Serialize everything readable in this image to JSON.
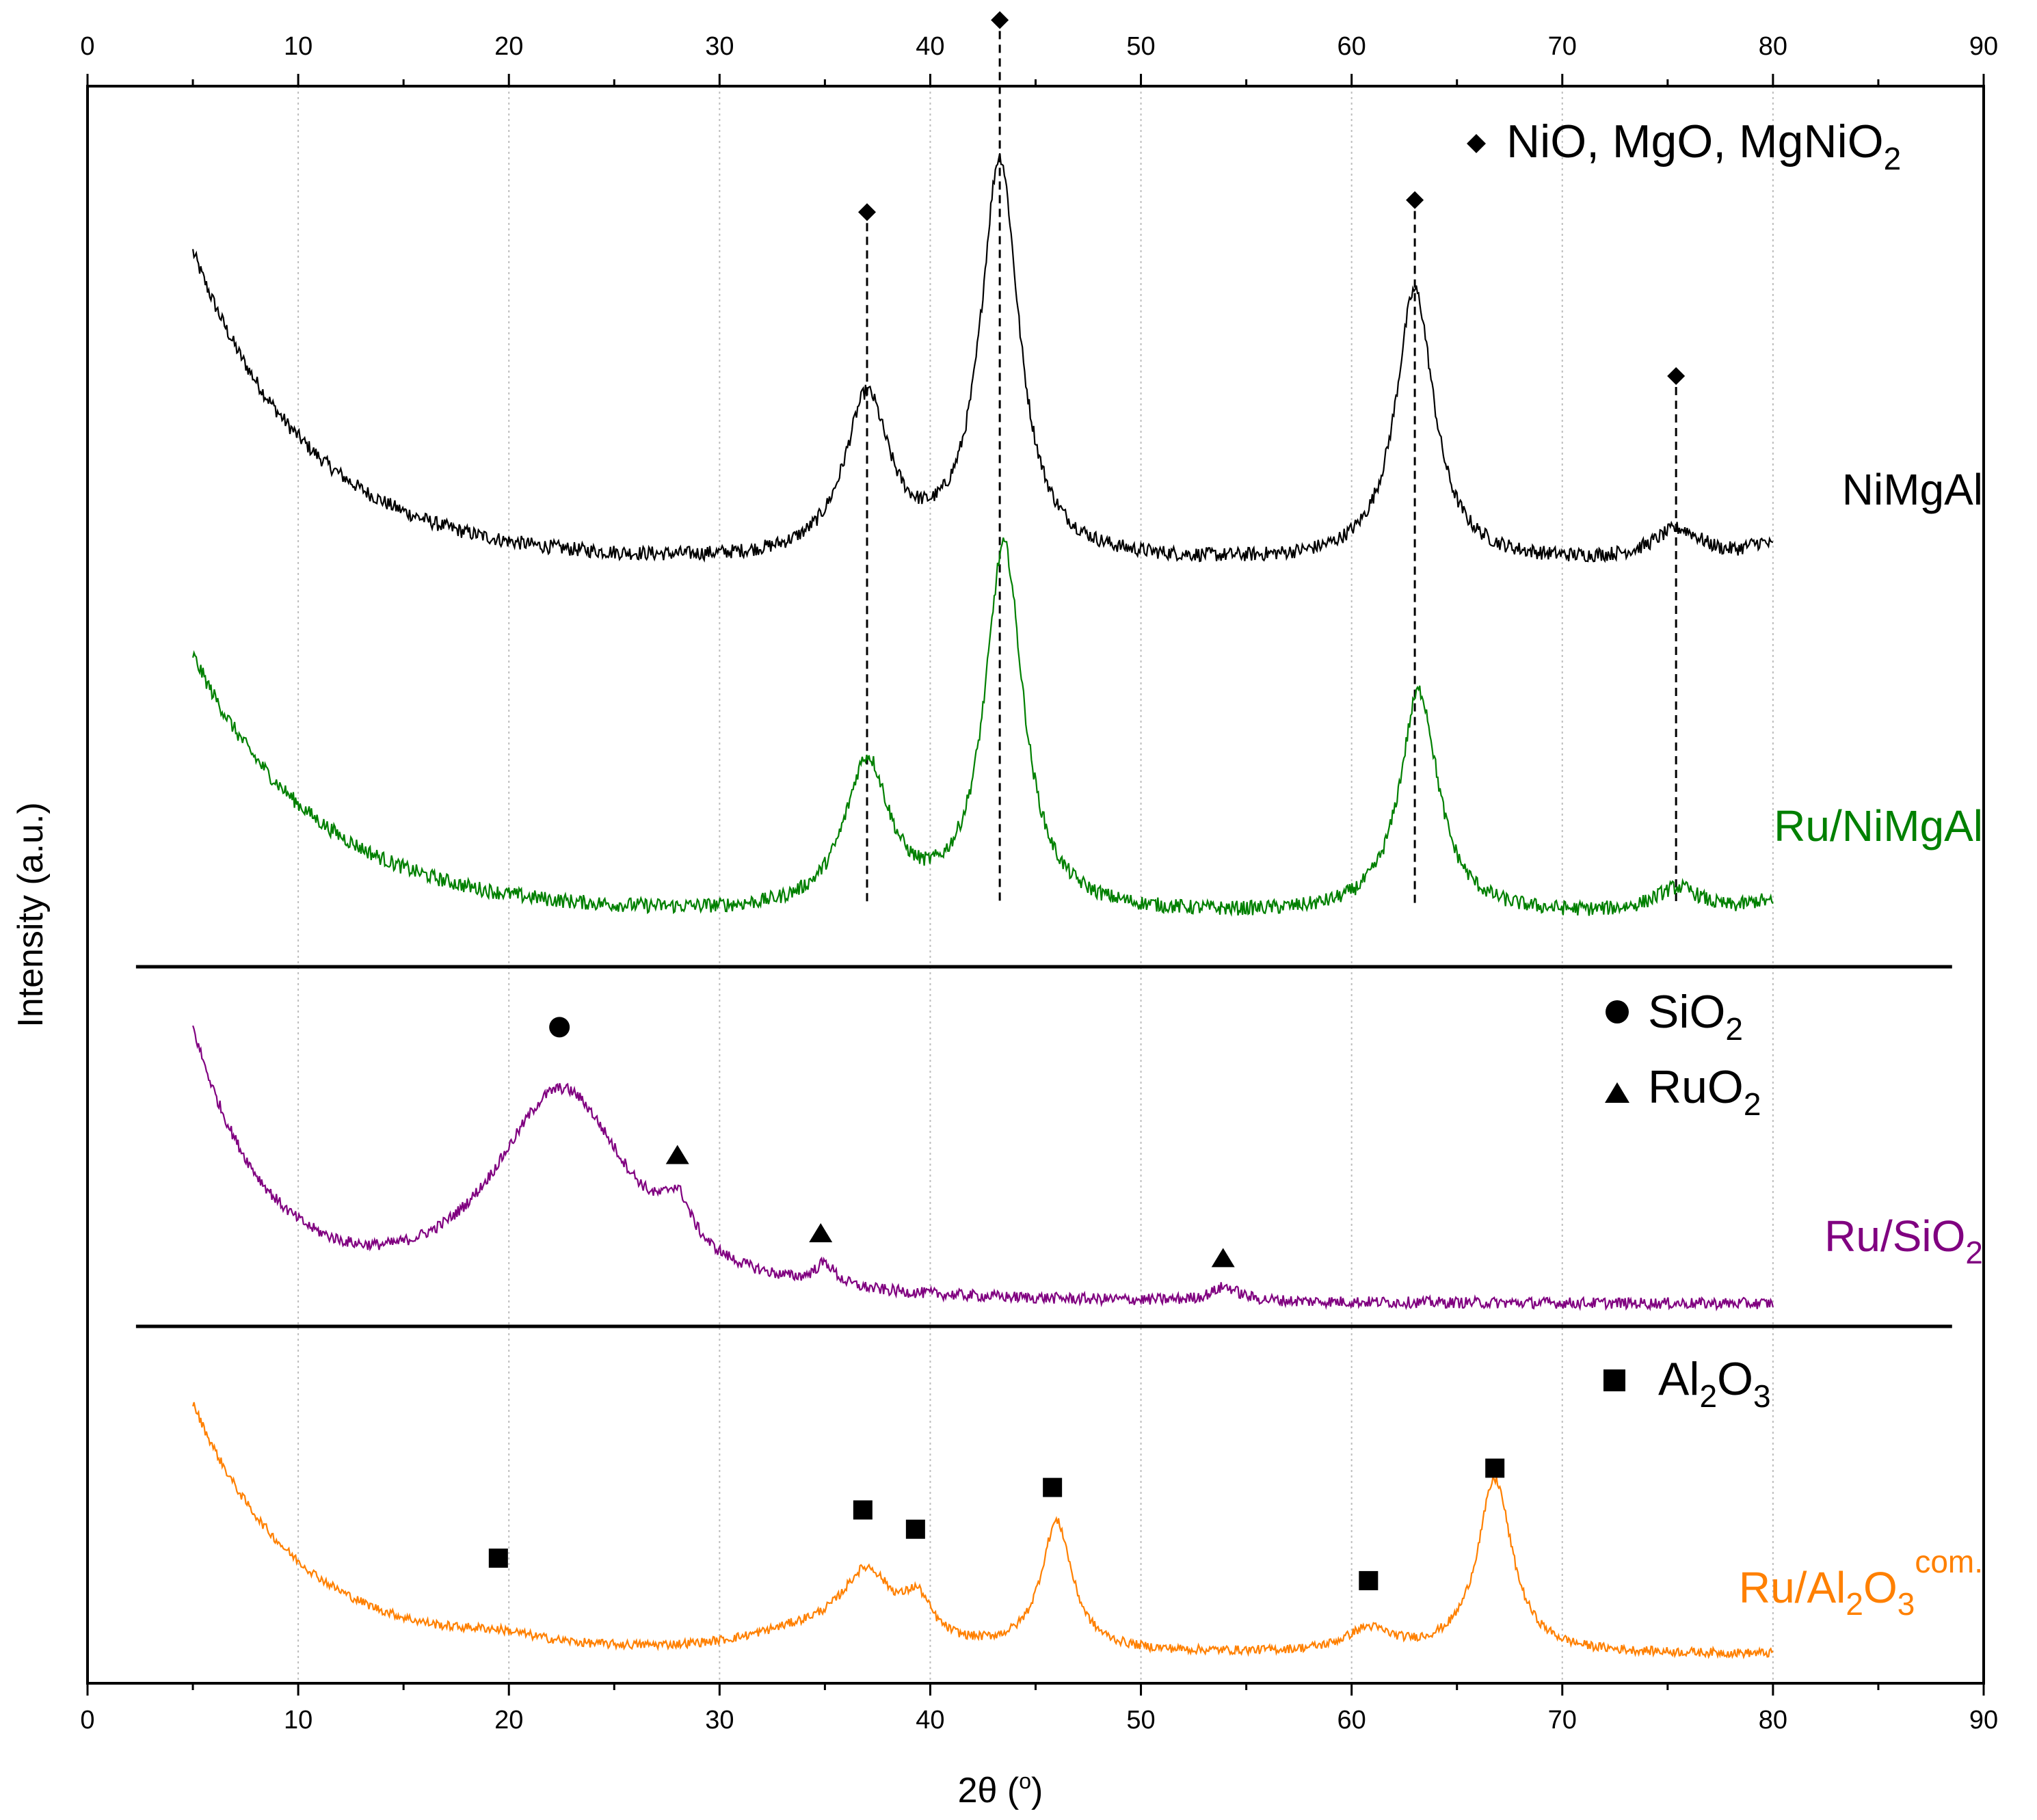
{
  "chart_data": {
    "type": "line",
    "title": "",
    "xlabel_base": "2θ (",
    "xlabel_sup": "o",
    "xlabel_end": ")",
    "ylabel": "Intensity (a.u.)",
    "xlim": [
      0,
      90
    ],
    "xticks": [
      0,
      10,
      20,
      30,
      40,
      50,
      60,
      70,
      80,
      90
    ],
    "top_xticks": [
      0,
      10,
      20,
      30,
      40,
      50,
      60,
      70,
      80,
      90
    ],
    "grid": "vertical dotted at major ticks",
    "x_range_measured": [
      5,
      80
    ],
    "series": [
      {
        "name": "NiMgAl",
        "label_base": "NiMgAl",
        "color": "#000000",
        "peaks": [
          {
            "x": 37.0,
            "h": 0.4,
            "w": 1.3
          },
          {
            "x": 43.3,
            "h": 1.0,
            "w": 1.1
          },
          {
            "x": 63.0,
            "h": 0.68,
            "w": 1.1
          },
          {
            "x": 75.5,
            "h": 0.08,
            "w": 1.5
          },
          {
            "x": 79.5,
            "h": 0.04,
            "w": 1.0
          }
        ],
        "bg": {
          "a": 0.78,
          "k": 0.18,
          "c": 0.0
        },
        "noise": 0.018,
        "markers": [
          {
            "x": 37.0,
            "shape": "diamond",
            "y": 0.88
          },
          {
            "x": 43.3,
            "shape": "diamond",
            "y": 1.36
          },
          {
            "x": 63.0,
            "shape": "diamond",
            "y": 0.91
          },
          {
            "x": 75.4,
            "shape": "diamond",
            "y": 0.47
          }
        ]
      },
      {
        "name": "Ru/NiMgAl",
        "label_base": "Ru/NiMgAl",
        "color": "#008000",
        "peaks": [
          {
            "x": 37.0,
            "h": 0.4,
            "w": 1.3
          },
          {
            "x": 43.5,
            "h": 0.98,
            "w": 1.1
          },
          {
            "x": 63.2,
            "h": 0.6,
            "w": 1.1
          },
          {
            "x": 75.5,
            "h": 0.07,
            "w": 1.4
          },
          {
            "x": 79.5,
            "h": 0.03,
            "w": 1.0
          }
        ],
        "bg": {
          "a": 0.7,
          "k": 0.17,
          "c": 0.0
        },
        "noise": 0.02,
        "markers": []
      },
      {
        "name": "Ru/SiO2",
        "label_base": "Ru/SiO",
        "label_sub": "2",
        "color": "#800080",
        "peaks": [
          {
            "x": 22.5,
            "h": 0.6,
            "w": 4.0
          },
          {
            "x": 28.0,
            "h": 0.12,
            "w": 0.8
          },
          {
            "x": 35.0,
            "h": 0.06,
            "w": 0.6
          },
          {
            "x": 54.0,
            "h": 0.04,
            "w": 0.8
          }
        ],
        "bg": {
          "a": 0.75,
          "k": 0.28,
          "c": 0.0
        },
        "noise": 0.016,
        "markers": [
          {
            "x": 22.4,
            "shape": "circle",
            "y": 0.78
          },
          {
            "x": 28.0,
            "shape": "triangle",
            "y": 0.42
          },
          {
            "x": 34.8,
            "shape": "triangle",
            "y": 0.2
          },
          {
            "x": 53.9,
            "shape": "triangle",
            "y": 0.13
          }
        ]
      },
      {
        "name": "Ru/Al2O3 com.",
        "label_base": "Ru/Al",
        "label_sub1": "2",
        "label_mid": "O",
        "label_sub2": "3",
        "label_sup": "com.",
        "color": "#ff8000",
        "peaks": [
          {
            "x": 19.5,
            "h": 0.03,
            "w": 2.5
          },
          {
            "x": 34.0,
            "h": 0.06,
            "w": 3.5
          },
          {
            "x": 37.0,
            "h": 0.22,
            "w": 1.5
          },
          {
            "x": 39.4,
            "h": 0.12,
            "w": 0.8
          },
          {
            "x": 46.0,
            "h": 0.4,
            "w": 0.9
          },
          {
            "x": 60.8,
            "h": 0.07,
            "w": 1.3
          },
          {
            "x": 66.8,
            "h": 0.54,
            "w": 1.0
          }
        ],
        "bg": {
          "a": 0.78,
          "k": 0.2,
          "c": 0.0
        },
        "noise": 0.014,
        "markers": [
          {
            "x": 19.5,
            "shape": "square",
            "y": 0.3
          },
          {
            "x": 36.8,
            "shape": "square",
            "y": 0.45
          },
          {
            "x": 39.3,
            "shape": "square",
            "y": 0.39
          },
          {
            "x": 45.8,
            "shape": "square",
            "y": 0.52
          },
          {
            "x": 60.8,
            "shape": "square",
            "y": 0.23
          },
          {
            "x": 66.8,
            "shape": "square",
            "y": 0.58
          }
        ]
      }
    ],
    "reference_lines": [
      37.0,
      43.3,
      63.0,
      75.4
    ],
    "legend": [
      {
        "group": "NiO",
        "symbol": "diamond",
        "text_parts": [
          "NiO, MgO, MgNiO",
          "2"
        ]
      },
      {
        "group": "SiO2",
        "symbol": "circle",
        "text_parts": [
          "SiO",
          "2"
        ]
      },
      {
        "group": "RuO2",
        "symbol": "triangle",
        "text_parts": [
          "RuO",
          "2"
        ]
      },
      {
        "group": "Al2O3",
        "symbol": "square",
        "text_parts": [
          "Al",
          "2",
          "O",
          "3"
        ]
      }
    ]
  }
}
